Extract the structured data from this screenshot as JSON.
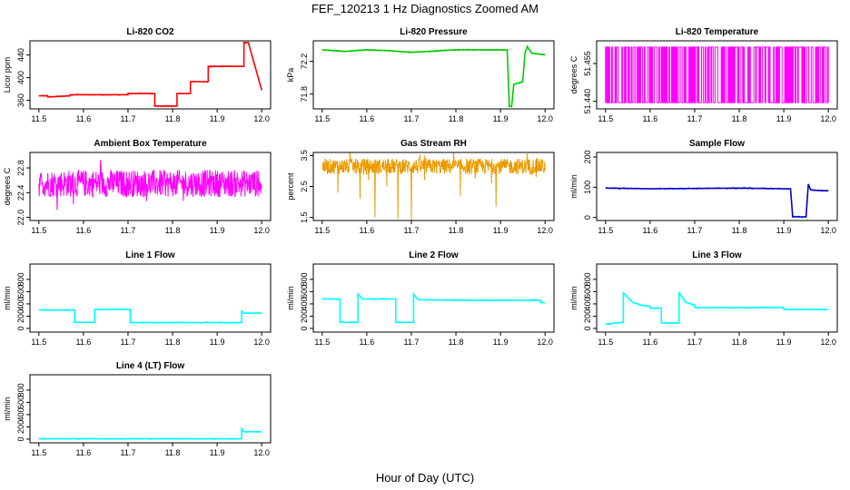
{
  "figure": {
    "title": "FEF_120213  1 Hz Diagnostics Zoomed AM",
    "xlabel": "Hour of Day (UTC)"
  },
  "chart_data": [
    {
      "type": "line",
      "title": "Li-820 CO2",
      "ylabel": "Licor ppm",
      "color": "#ff0000",
      "xlim": [
        11.48,
        12.02
      ],
      "ylim": [
        345,
        465
      ],
      "yticks": [
        360,
        400,
        440
      ],
      "xticks": [
        11.5,
        11.6,
        11.7,
        11.8,
        11.9,
        12.0
      ],
      "x": [
        11.5,
        11.52,
        11.52,
        11.57,
        11.57,
        11.7,
        11.7,
        11.76,
        11.76,
        11.81,
        11.81,
        11.84,
        11.84,
        11.88,
        11.88,
        11.96,
        11.96,
        11.97,
        12.0
      ],
      "y": [
        368,
        368,
        366,
        368,
        370,
        370,
        372,
        372,
        350,
        350,
        372,
        372,
        393,
        393,
        420,
        420,
        462,
        462,
        378
      ]
    },
    {
      "type": "line",
      "title": "Li-820 Pressure",
      "ylabel": "kPa",
      "color": "#00cc00",
      "xlim": [
        11.48,
        12.02
      ],
      "ylim": [
        71.62,
        72.45
      ],
      "yticks": [
        71.8,
        72.2
      ],
      "ytick_labels": [
        "71.8",
        "72.2"
      ],
      "xticks": [
        11.5,
        11.6,
        11.7,
        11.8,
        11.9,
        12.0
      ],
      "x": [
        11.5,
        11.55,
        11.6,
        11.65,
        11.7,
        11.8,
        11.9,
        11.915,
        11.92,
        11.925,
        11.93,
        11.93,
        11.95,
        11.955,
        11.96,
        11.97,
        12.0
      ],
      "y": [
        72.34,
        72.32,
        72.34,
        72.33,
        72.31,
        72.34,
        72.34,
        72.34,
        71.65,
        71.65,
        71.92,
        71.92,
        71.95,
        72.3,
        72.38,
        72.3,
        72.28
      ]
    },
    {
      "type": "line",
      "title": "Li-820 Temperature",
      "ylabel": "degrees C",
      "color": "#ff00ff",
      "xlim": [
        11.48,
        12.02
      ],
      "ylim": [
        51.437,
        51.464
      ],
      "yticks": [
        51.44,
        51.455
      ],
      "ytick_labels": [
        "51.440",
        "51.455"
      ],
      "xticks": [
        11.5,
        11.6,
        11.7,
        11.8,
        11.9,
        12.0
      ],
      "levels": [
        51.4395,
        51.4615
      ],
      "x_range": [
        11.5,
        12.0
      ]
    },
    {
      "type": "line",
      "title": "Ambient Box Temperature",
      "ylabel": "degrees C",
      "color": "#ff00ff",
      "xlim": [
        11.48,
        12.02
      ],
      "ylim": [
        21.95,
        23.05
      ],
      "yticks": [
        22.0,
        22.4,
        22.8
      ],
      "ytick_labels": [
        "22.0",
        "22.4",
        "22.8"
      ],
      "xticks": [
        11.5,
        11.6,
        11.7,
        11.8,
        11.9,
        12.0
      ],
      "center": 22.55,
      "spread": 0.22,
      "x_range": [
        11.5,
        12.0
      ]
    },
    {
      "type": "line",
      "title": "Gas Stream RH",
      "ylabel": "percent",
      "color": "#ffa500",
      "xlim": [
        11.48,
        12.02
      ],
      "ylim": [
        1.4,
        3.6
      ],
      "yticks": [
        1.5,
        2.5,
        3.5
      ],
      "ytick_labels": [
        "1.5",
        "2.5",
        "3.5"
      ],
      "xticks": [
        11.5,
        11.6,
        11.7,
        11.8,
        11.9,
        12.0
      ],
      "center": 3.15,
      "spread": 0.25,
      "x_range": [
        11.5,
        12.0
      ],
      "dips": [
        [
          11.535,
          2.3
        ],
        [
          11.585,
          2.1
        ],
        [
          11.6,
          2.9
        ],
        [
          11.618,
          1.5
        ],
        [
          11.645,
          2.5
        ],
        [
          11.67,
          1.45
        ],
        [
          11.7,
          1.42
        ],
        [
          11.73,
          2.7
        ],
        [
          11.81,
          2.2
        ],
        [
          11.88,
          2.6
        ],
        [
          11.89,
          1.85
        ],
        [
          11.98,
          2.8
        ]
      ]
    },
    {
      "type": "line",
      "title": "Sample Flow",
      "ylabel": "ml/min",
      "color": "#0000cc",
      "xlim": [
        11.48,
        12.02
      ],
      "ylim": [
        -10,
        215
      ],
      "yticks": [
        0,
        100,
        200
      ],
      "xticks": [
        11.5,
        11.6,
        11.7,
        11.8,
        11.9,
        12.0
      ],
      "x": [
        11.5,
        11.6,
        11.7,
        11.8,
        11.9,
        11.915,
        11.92,
        11.95,
        11.955,
        11.96,
        11.97,
        12.0
      ],
      "y": [
        97,
        95,
        96,
        97,
        95,
        95,
        2,
        2,
        110,
        92,
        90,
        88
      ]
    },
    {
      "type": "line",
      "title": "Line 1 Flow",
      "ylabel": "ml/min",
      "color": "#00ffff",
      "xlim": [
        11.48,
        12.02
      ],
      "ylim": [
        -60,
        1050
      ],
      "yticks": [
        0,
        200,
        400,
        600,
        800
      ],
      "xticks": [
        11.5,
        11.6,
        11.7,
        11.8,
        11.9,
        12.0
      ],
      "x": [
        11.5,
        11.58,
        11.58,
        11.625,
        11.625,
        11.705,
        11.705,
        11.955,
        11.955,
        11.96,
        12.0
      ],
      "y": [
        300,
        300,
        100,
        100,
        310,
        310,
        95,
        95,
        280,
        250,
        250
      ]
    },
    {
      "type": "line",
      "title": "Line 2 Flow",
      "ylabel": "ml/min",
      "color": "#00ffff",
      "xlim": [
        11.48,
        12.02
      ],
      "ylim": [
        -60,
        1050
      ],
      "yticks": [
        0,
        200,
        400,
        600,
        800
      ],
      "xticks": [
        11.5,
        11.6,
        11.7,
        11.8,
        11.9,
        12.0
      ],
      "x": [
        11.5,
        11.54,
        11.54,
        11.58,
        11.58,
        11.59,
        11.665,
        11.665,
        11.705,
        11.705,
        11.715,
        11.8,
        11.9,
        11.99,
        11.99,
        12.0
      ],
      "y": [
        480,
        480,
        100,
        100,
        560,
        480,
        480,
        100,
        100,
        560,
        470,
        460,
        460,
        460,
        420,
        420
      ]
    },
    {
      "type": "line",
      "title": "Line 3 Flow",
      "ylabel": "ml/min",
      "color": "#00ffff",
      "xlim": [
        11.48,
        12.02
      ],
      "ylim": [
        -60,
        1050
      ],
      "yticks": [
        0,
        200,
        400,
        600,
        800
      ],
      "xticks": [
        11.5,
        11.6,
        11.7,
        11.8,
        11.9,
        12.0
      ],
      "x": [
        11.5,
        11.54,
        11.54,
        11.56,
        11.58,
        11.6,
        11.6,
        11.625,
        11.625,
        11.665,
        11.665,
        11.68,
        11.7,
        11.7,
        11.9,
        11.9,
        12.0
      ],
      "y": [
        70,
        100,
        580,
        430,
        380,
        360,
        330,
        330,
        90,
        90,
        580,
        430,
        380,
        340,
        340,
        310,
        310
      ]
    },
    {
      "type": "line",
      "title": "Line 4 (LT) Flow",
      "ylabel": "ml/min",
      "color": "#00ffff",
      "xlim": [
        11.48,
        12.02
      ],
      "ylim": [
        -60,
        1050
      ],
      "yticks": [
        0,
        200,
        400,
        600,
        800
      ],
      "xticks": [
        11.5,
        11.6,
        11.7,
        11.8,
        11.9,
        12.0
      ],
      "x": [
        11.5,
        11.955,
        11.955,
        11.96,
        12.0
      ],
      "y": [
        5,
        5,
        170,
        120,
        120
      ]
    }
  ]
}
